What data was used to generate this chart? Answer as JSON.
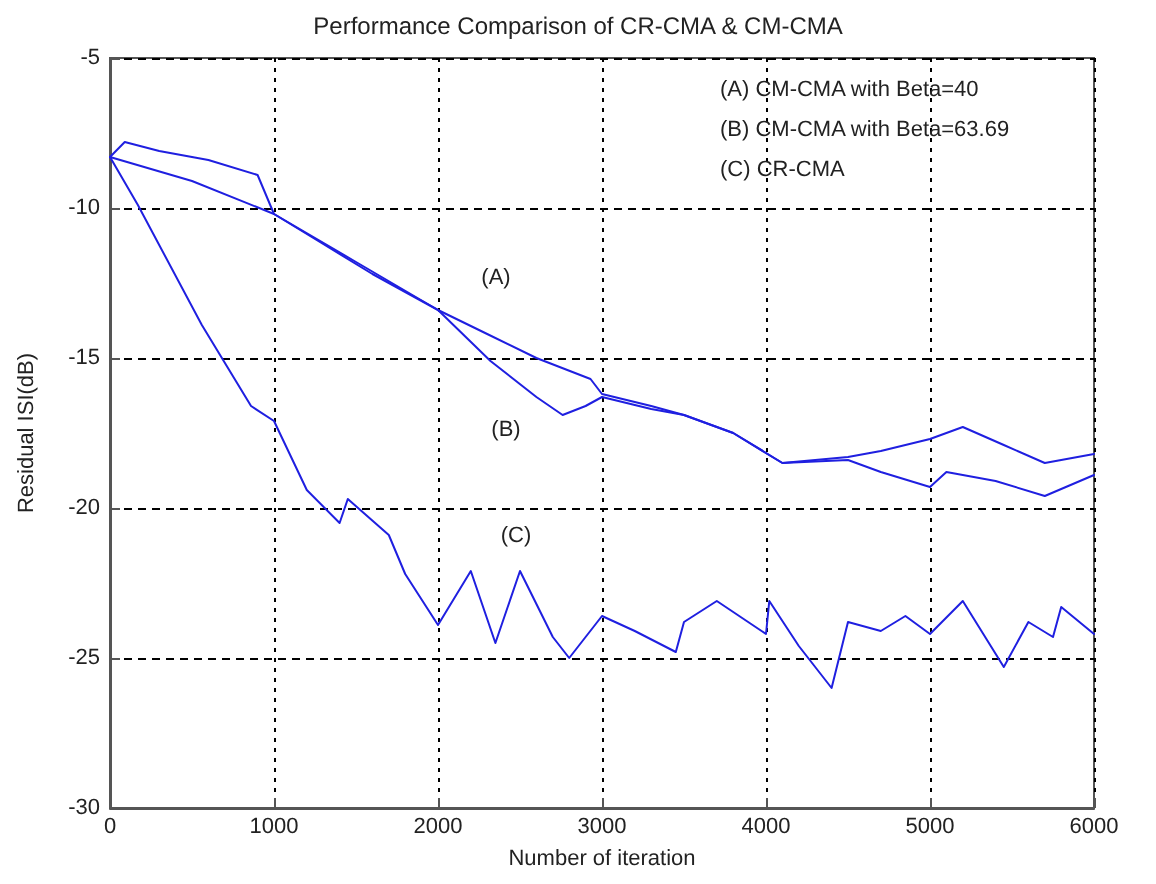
{
  "chart_data": {
    "type": "line",
    "title": "Performance Comparison of CR-CMA & CM-CMA",
    "xlabel": "Number of iteration",
    "ylabel": "Residual ISI(dB)",
    "xlim": [
      0,
      6000
    ],
    "xticks": [
      0,
      1000,
      2000,
      3000,
      4000,
      5000,
      6000
    ],
    "ylim": [
      -30,
      -5
    ],
    "yticks": [
      -30,
      -25,
      -20,
      -15,
      -10,
      -5
    ],
    "grid": true,
    "line_style": "solid",
    "marker": "none",
    "series": [
      {
        "color": "#1f1fe0",
        "x": [
          0,
          90,
          300,
          600,
          900,
          1000,
          1300,
          1600,
          2000,
          2300,
          2600,
          2930,
          3000,
          3300,
          3500,
          3800,
          4100,
          4500,
          4700,
          5000,
          5200,
          5450,
          5700,
          6000
        ],
        "values": [
          -8.3,
          -7.8,
          -8.1,
          -8.4,
          -8.9,
          -10.2,
          -11.2,
          -12.2,
          -13.4,
          -14.2,
          -15.0,
          -15.7,
          -16.2,
          -16.6,
          -16.9,
          -17.5,
          -18.5,
          -18.3,
          -18.1,
          -17.7,
          -17.3,
          -17.9,
          -18.5,
          -18.2
        ]
      },
      {
        "color": "#1f1fe0",
        "x": [
          0,
          500,
          1000,
          1500,
          2000,
          2320,
          2600,
          2760,
          2900,
          3000,
          3300,
          3500,
          3800,
          4100,
          4500,
          4700,
          5000,
          5100,
          5400,
          5700,
          6000
        ],
        "values": [
          -8.3,
          -9.1,
          -10.2,
          -11.8,
          -13.4,
          -15.1,
          -16.3,
          -16.9,
          -16.6,
          -16.3,
          -16.7,
          -16.9,
          -17.5,
          -18.5,
          -18.4,
          -18.8,
          -19.3,
          -18.8,
          -19.1,
          -19.6,
          -18.9
        ]
      },
      {
        "color": "#1f1fe0",
        "x": [
          0,
          170,
          560,
          860,
          1000,
          1200,
          1400,
          1450,
          1700,
          1800,
          2000,
          2200,
          2350,
          2500,
          2700,
          2800,
          3000,
          3200,
          3450,
          3500,
          3700,
          4000,
          4020,
          4200,
          4400,
          4500,
          4700,
          4850,
          5000,
          5200,
          5450,
          5600,
          5750,
          5800,
          6000
        ],
        "values": [
          -8.3,
          -9.9,
          -13.9,
          -16.6,
          -17.1,
          -19.4,
          -20.5,
          -19.7,
          -20.9,
          -22.2,
          -23.9,
          -22.1,
          -24.5,
          -22.1,
          -24.3,
          -25.0,
          -23.6,
          -24.1,
          -24.8,
          -23.8,
          -23.1,
          -24.2,
          -23.1,
          -24.6,
          -26.0,
          -23.8,
          -24.1,
          -23.6,
          -24.2,
          -23.1,
          -25.3,
          -23.8,
          -24.3,
          -23.3,
          -24.2
        ]
      }
    ],
    "annotations": [
      "(A)",
      "(B)",
      "(C)",
      "(A) CM-CMA with Beta=40",
      "(B) CM-CMA with Beta=63.69",
      "(C) CR-CMA"
    ]
  }
}
